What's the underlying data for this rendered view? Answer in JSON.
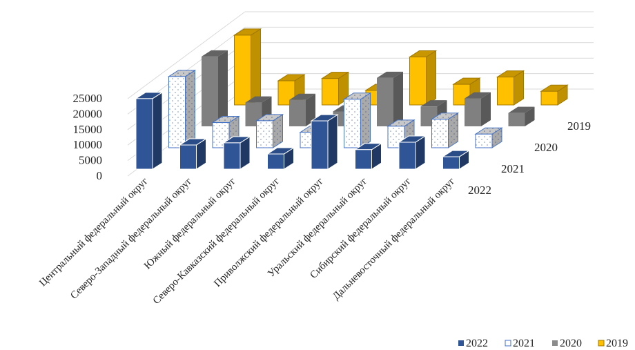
{
  "chart_data": {
    "type": "bar",
    "subtype": "3d-clustered-depth",
    "title": "",
    "xlabel": "",
    "ylabel": "",
    "ylim": [
      0,
      25000
    ],
    "yticks": [
      "0",
      "5000",
      "10000",
      "15000",
      "20000",
      "25000"
    ],
    "grid": true,
    "legend_position": "bottom-right",
    "categories": [
      "Центральный федеральный округ",
      "Северо-Западный федеральный округ",
      "Южный федеральный округ",
      "Северо-Кавказский федеральный округ",
      "Приволжский федеральный округ",
      "Уральский федеральный округ",
      "Сибирский федеральный округ",
      "Дальневосточный федеральный округ"
    ],
    "series": [
      {
        "name": "2022",
        "color": "#2F5597",
        "values": [
          22800,
          7800,
          8500,
          4900,
          15600,
          6300,
          8700,
          4000
        ]
      },
      {
        "name": "2021",
        "color": "#FFFFFF",
        "pattern": "dotted",
        "values": [
          23500,
          8300,
          8900,
          5100,
          16000,
          7100,
          9400,
          4500
        ]
      },
      {
        "name": "2020",
        "color": "#7F7F7F",
        "values": [
          23500,
          8000,
          8900,
          5000,
          16300,
          6700,
          9400,
          4500
        ]
      },
      {
        "name": "2019",
        "color": "#FFC000",
        "values": [
          24000,
          8300,
          9100,
          5000,
          16500,
          7100,
          9600,
          4700
        ]
      }
    ]
  }
}
